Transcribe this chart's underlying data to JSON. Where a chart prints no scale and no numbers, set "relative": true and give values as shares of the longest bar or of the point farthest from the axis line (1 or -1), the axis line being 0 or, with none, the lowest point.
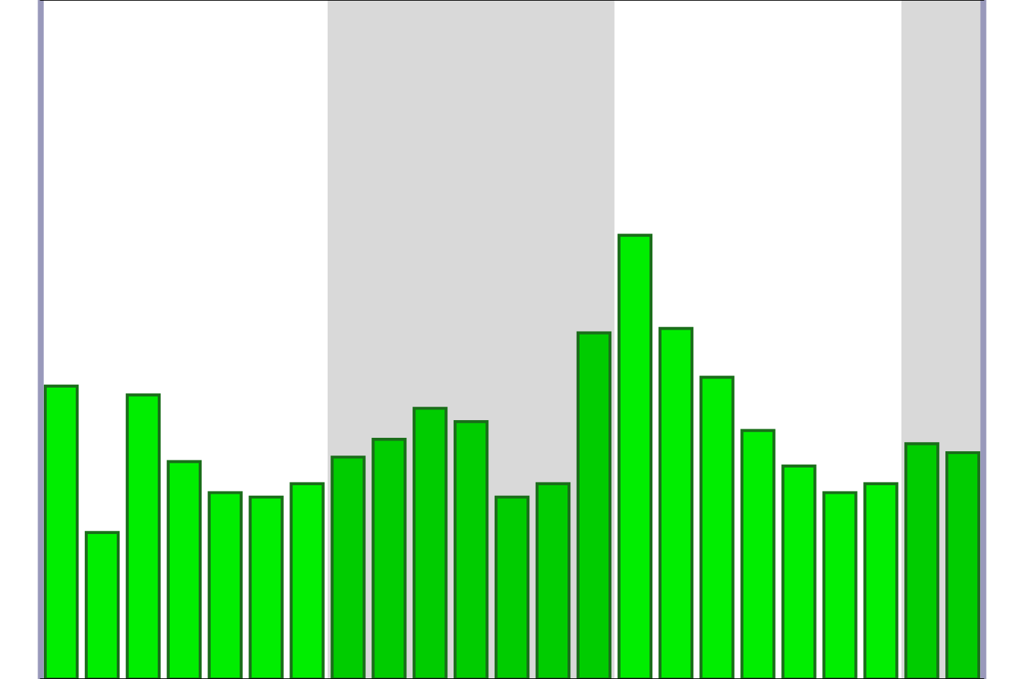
{
  "chart_data": {
    "type": "bar",
    "relative": true,
    "categories": [
      null,
      null,
      null,
      null,
      null,
      null,
      null,
      null,
      null,
      null,
      null,
      null,
      null,
      null,
      null,
      null,
      null,
      null,
      null,
      null,
      null,
      null,
      null
    ],
    "values": [
      0.66,
      0.33,
      0.64,
      0.49,
      0.42,
      0.41,
      0.44,
      0.5,
      0.54,
      0.61,
      0.58,
      0.41,
      0.44,
      0.78,
      1,
      0.79,
      0.68,
      0.56,
      0.48,
      0.42,
      0.44,
      0.53,
      0.51
    ],
    "colors": [
      "#00ee00",
      "#00ee00",
      "#00ee00",
      "#00ee00",
      "#00ee00",
      "#00ee00",
      "#00ee00",
      "#00cc00",
      "#00cc00",
      "#00cc00",
      "#00cc00",
      "#00cc00",
      "#00cc00",
      "#00cc00",
      "#00ee00",
      "#00ee00",
      "#00ee00",
      "#00ee00",
      "#00ee00",
      "#00ee00",
      "#00ee00",
      "#00cc00",
      "#00cc00"
    ]
  }
}
